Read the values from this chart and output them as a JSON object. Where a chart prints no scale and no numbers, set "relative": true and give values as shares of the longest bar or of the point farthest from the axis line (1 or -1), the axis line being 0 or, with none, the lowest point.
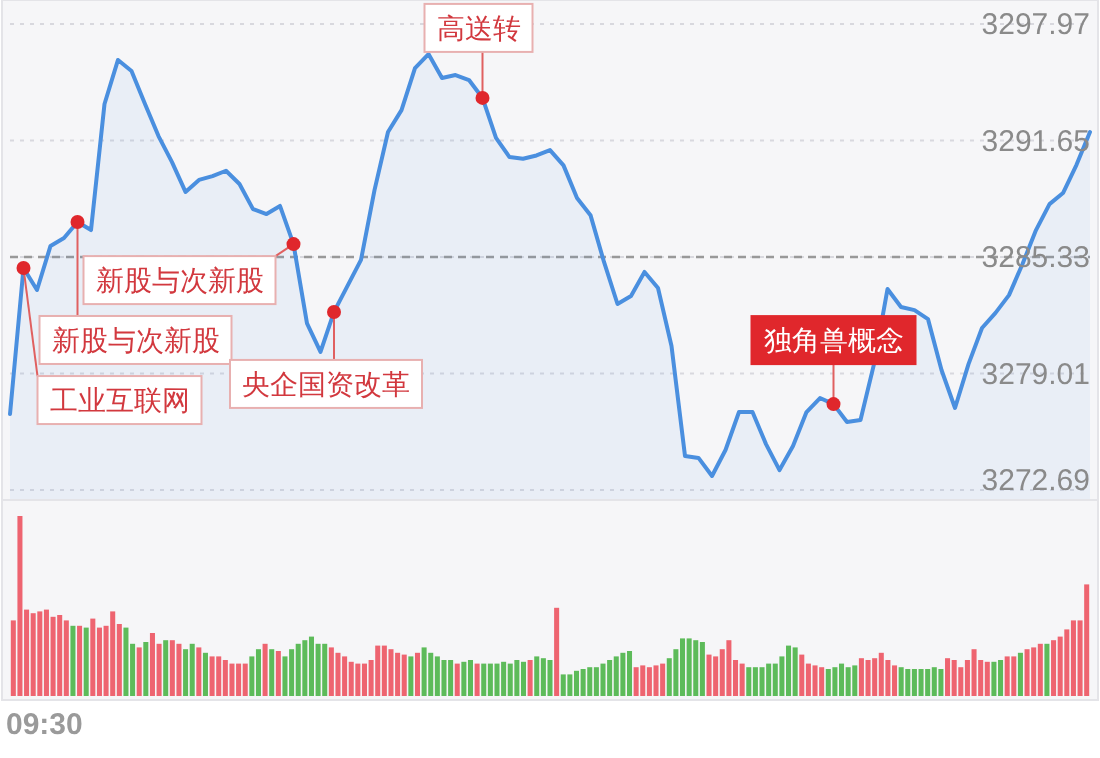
{
  "chart_data": [
    {
      "type": "area",
      "categories": [
        null,
        null,
        null,
        null,
        null,
        null,
        null,
        null,
        null,
        null,
        null,
        null,
        null,
        null,
        null,
        null,
        null,
        null,
        null,
        null,
        null,
        null,
        null,
        null,
        null,
        null,
        null,
        null,
        null,
        null,
        null,
        null,
        null,
        null,
        null,
        null,
        null,
        null,
        null,
        null,
        null,
        null,
        null,
        null,
        null,
        null,
        null,
        null,
        null,
        null,
        null,
        null,
        null,
        null,
        null,
        null,
        null,
        null,
        null,
        null,
        null,
        null,
        null,
        null,
        null,
        null,
        null,
        null,
        null,
        null,
        null,
        null,
        null,
        null,
        null,
        null,
        null,
        null,
        null,
        null,
        null
      ],
      "series": [
        {
          "color": "#4a8fdf",
          "values": [
            3276.81,
            3284.73,
            3283.54,
            3285.93,
            3286.36,
            3287.23,
            3286.79,
            3293.63,
            3296.02,
            3295.42,
            3293.63,
            3291.89,
            3290.48,
            3288.86,
            3289.51,
            3289.72,
            3290.01,
            3289.29,
            3287.93,
            3287.66,
            3288.1,
            3286.03,
            3281.73,
            3280.18,
            3282.35,
            3283.76,
            3285.17,
            3288.96,
            3292.11,
            3293.3,
            3295.58,
            3296.34,
            3295.04,
            3295.2,
            3294.93,
            3293.96,
            3291.79,
            3290.75,
            3290.66,
            3290.84,
            3291.13,
            3290.3,
            3288.53,
            3287.6,
            3285.06,
            3282.78,
            3283.21,
            3284.52,
            3283.65,
            3280.5,
            3274.53,
            3274.43,
            3273.45,
            3274.86,
            3276.92,
            3276.92,
            3275.18,
            3273.77,
            3275.08,
            3276.92,
            3277.68,
            3277.35,
            3276.38,
            3276.49,
            3279.52,
            3283.59,
            3282.62,
            3282.45,
            3281.96,
            3279.2,
            3277.14,
            3279.52,
            3281.48,
            3282.3,
            3283.26,
            3284.95,
            3286.79,
            3288.2,
            3288.8,
            3290.33,
            3292.11
          ]
        },
        {
          "type": "scatter",
          "color": "#e0272c",
          "marker": "circle",
          "values": [
            null,
            3284.73,
            null,
            null,
            null,
            3287.23,
            null,
            null,
            null,
            null,
            null,
            null,
            null,
            null,
            null,
            null,
            null,
            null,
            null,
            null,
            null,
            3286.03,
            null,
            null,
            3282.35,
            null,
            null,
            null,
            null,
            null,
            null,
            null,
            null,
            null,
            null,
            3293.96,
            null,
            null,
            null,
            null,
            null,
            null,
            null,
            null,
            null,
            null,
            null,
            null,
            null,
            null,
            null,
            null,
            null,
            null,
            null,
            null,
            null,
            null,
            null,
            null,
            null,
            3277.35,
            null,
            null,
            null,
            null,
            null,
            null,
            null,
            null,
            null,
            null,
            null,
            null,
            null,
            null,
            null,
            null,
            null,
            null,
            null
          ]
        }
      ],
      "ylim": [
        3272.69,
        3297.97
      ],
      "yticks": [
        3272.69,
        3279.01,
        3285.33,
        3291.65,
        3297.97
      ],
      "tick_labels": "y",
      "grid": "y",
      "ref_lines": [
        {
          "axis": "y",
          "value": 3285.33,
          "line_style": "dashed",
          "color": "#999999"
        }
      ],
      "annotations": [
        "工业互联网",
        "新股与次新股",
        "新股与次新股",
        "央企国资改革",
        "高送转",
        "独角兽概念"
      ]
    },
    {
      "type": "bar",
      "relative": true,
      "categories": [
        null,
        null,
        null,
        null,
        null,
        null,
        null,
        null,
        null,
        null,
        null,
        null,
        null,
        null,
        null,
        null,
        null,
        null,
        null,
        null,
        null,
        null,
        null,
        null,
        null,
        null,
        null,
        null,
        null,
        null,
        null,
        null,
        null,
        null,
        null,
        null,
        null,
        null,
        null,
        null,
        null,
        null,
        null,
        null,
        null,
        null,
        null,
        null,
        null,
        null,
        null,
        null,
        null,
        null,
        null,
        null,
        null,
        null,
        null,
        null,
        null,
        null,
        null,
        null,
        null,
        null,
        null,
        null,
        null,
        null,
        null,
        null,
        null,
        null,
        null,
        null,
        null,
        null,
        null,
        null,
        null,
        null,
        null,
        null,
        null,
        null,
        null,
        null,
        null,
        null,
        null,
        null,
        null,
        null,
        null,
        null,
        null,
        null,
        null,
        null,
        null,
        null,
        null,
        null,
        null,
        null,
        null,
        null,
        null,
        null,
        null,
        null,
        null,
        null,
        null,
        null,
        null,
        null,
        null,
        null,
        null,
        null,
        null,
        null,
        null,
        null,
        null,
        null,
        null,
        null,
        null,
        null,
        null,
        null,
        null,
        null,
        null,
        null,
        null,
        null,
        null,
        null,
        null,
        null,
        null,
        null,
        null,
        null,
        null,
        null,
        null,
        null,
        null,
        null,
        null,
        null,
        null,
        null,
        null,
        null,
        null,
        null,
        null
      ],
      "values": [
        0.42,
        1.0,
        0.48,
        0.46,
        0.47,
        0.48,
        0.44,
        0.45,
        0.42,
        0.39,
        0.39,
        0.38,
        0.43,
        0.38,
        0.39,
        0.47,
        0.4,
        0.38,
        0.29,
        0.27,
        0.3,
        0.35,
        0.29,
        0.31,
        0.31,
        0.29,
        0.26,
        0.29,
        0.27,
        0.24,
        0.22,
        0.22,
        0.2,
        0.18,
        0.18,
        0.18,
        0.22,
        0.26,
        0.29,
        0.26,
        0.25,
        0.22,
        0.26,
        0.29,
        0.31,
        0.33,
        0.29,
        0.29,
        0.27,
        0.24,
        0.22,
        0.19,
        0.18,
        0.18,
        0.2,
        0.28,
        0.28,
        0.26,
        0.24,
        0.23,
        0.22,
        0.24,
        0.27,
        0.24,
        0.22,
        0.2,
        0.2,
        0.18,
        0.19,
        0.2,
        0.18,
        0.18,
        0.18,
        0.18,
        0.19,
        0.18,
        0.2,
        0.19,
        0.2,
        0.22,
        0.21,
        0.2,
        0.49,
        0.12,
        0.12,
        0.14,
        0.15,
        0.16,
        0.16,
        0.18,
        0.2,
        0.22,
        0.24,
        0.25,
        0.16,
        0.17,
        0.16,
        0.17,
        0.18,
        0.21,
        0.26,
        0.32,
        0.32,
        0.31,
        0.3,
        0.23,
        0.22,
        0.26,
        0.31,
        0.2,
        0.18,
        0.16,
        0.16,
        0.16,
        0.18,
        0.18,
        0.22,
        0.28,
        0.27,
        0.23,
        0.18,
        0.17,
        0.16,
        0.15,
        0.16,
        0.18,
        0.16,
        0.17,
        0.21,
        0.2,
        0.21,
        0.24,
        0.2,
        0.17,
        0.16,
        0.15,
        0.15,
        0.15,
        0.15,
        0.16,
        0.15,
        0.21,
        0.2,
        0.16,
        0.2,
        0.26,
        0.2,
        0.19,
        0.19,
        0.2,
        0.22,
        0.22,
        0.24,
        0.26,
        0.27,
        0.29,
        0.29,
        0.31,
        0.33,
        0.37,
        0.42,
        0.42,
        0.62
      ],
      "colors": [
        "#ee6470",
        "#ee6470",
        "#ee6470",
        "#ee6470",
        "#ee6470",
        "#ee6470",
        "#ee6470",
        "#ee6470",
        "#ee6470",
        "#5dbb5a",
        "#ee6470",
        "#5dbb5a",
        "#ee6470",
        "#ee6470",
        "#ee6470",
        "#ee6470",
        "#ee6470",
        "#5dbb5a",
        "#5dbb5a",
        "#ee6470",
        "#5dbb5a",
        "#ee6470",
        "#ee6470",
        "#5dbb5a",
        "#ee6470",
        "#ee6470",
        "#5dbb5a",
        "#5dbb5a",
        "#ee6470",
        "#5dbb5a",
        "#ee6470",
        "#ee6470",
        "#ee6470",
        "#ee6470",
        "#ee6470",
        "#ee6470",
        "#5dbb5a",
        "#5dbb5a",
        "#ee6470",
        "#5dbb5a",
        "#ee6470",
        "#5dbb5a",
        "#5dbb5a",
        "#5dbb5a",
        "#5dbb5a",
        "#5dbb5a",
        "#5dbb5a",
        "#5dbb5a",
        "#ee6470",
        "#ee6470",
        "#ee6470",
        "#ee6470",
        "#ee6470",
        "#ee6470",
        "#ee6470",
        "#ee6470",
        "#ee6470",
        "#ee6470",
        "#ee6470",
        "#ee6470",
        "#5dbb5a",
        "#ee6470",
        "#5dbb5a",
        "#5dbb5a",
        "#5dbb5a",
        "#5dbb5a",
        "#5dbb5a",
        "#ee6470",
        "#5dbb5a",
        "#5dbb5a",
        "#ee6470",
        "#5dbb5a",
        "#5dbb5a",
        "#5dbb5a",
        "#5dbb5a",
        "#5dbb5a",
        "#5dbb5a",
        "#5dbb5a",
        "#ee6470",
        "#5dbb5a",
        "#5dbb5a",
        "#5dbb5a",
        "#ee6470",
        "#5dbb5a",
        "#5dbb5a",
        "#5dbb5a",
        "#5dbb5a",
        "#5dbb5a",
        "#5dbb5a",
        "#5dbb5a",
        "#5dbb5a",
        "#5dbb5a",
        "#5dbb5a",
        "#5dbb5a",
        "#ee6470",
        "#ee6470",
        "#ee6470",
        "#ee6470",
        "#ee6470",
        "#5dbb5a",
        "#5dbb5a",
        "#5dbb5a",
        "#5dbb5a",
        "#5dbb5a",
        "#5dbb5a",
        "#ee6470",
        "#ee6470",
        "#ee6470",
        "#ee6470",
        "#ee6470",
        "#ee6470",
        "#5dbb5a",
        "#5dbb5a",
        "#5dbb5a",
        "#5dbb5a",
        "#5dbb5a",
        "#5dbb5a",
        "#5dbb5a",
        "#5dbb5a",
        "#ee6470",
        "#ee6470",
        "#ee6470",
        "#ee6470",
        "#5dbb5a",
        "#5dbb5a",
        "#5dbb5a",
        "#5dbb5a",
        "#5dbb5a",
        "#ee6470",
        "#ee6470",
        "#ee6470",
        "#ee6470",
        "#ee6470",
        "#ee6470",
        "#5dbb5a",
        "#5dbb5a",
        "#5dbb5a",
        "#5dbb5a",
        "#5dbb5a",
        "#5dbb5a",
        "#5dbb5a",
        "#ee6470",
        "#ee6470",
        "#ee6470",
        "#ee6470",
        "#ee6470",
        "#ee6470",
        "#ee6470",
        "#5dbb5a",
        "#5dbb5a",
        "#ee6470",
        "#ee6470",
        "#5dbb5a",
        "#ee6470",
        "#ee6470",
        "#ee6470",
        "#5dbb5a",
        "#ee6470",
        "#ee6470",
        "#ee6470",
        "#ee6470",
        "#ee6470",
        "#ee6470"
      ],
      "annotations": [
        "09:30"
      ]
    }
  ]
}
